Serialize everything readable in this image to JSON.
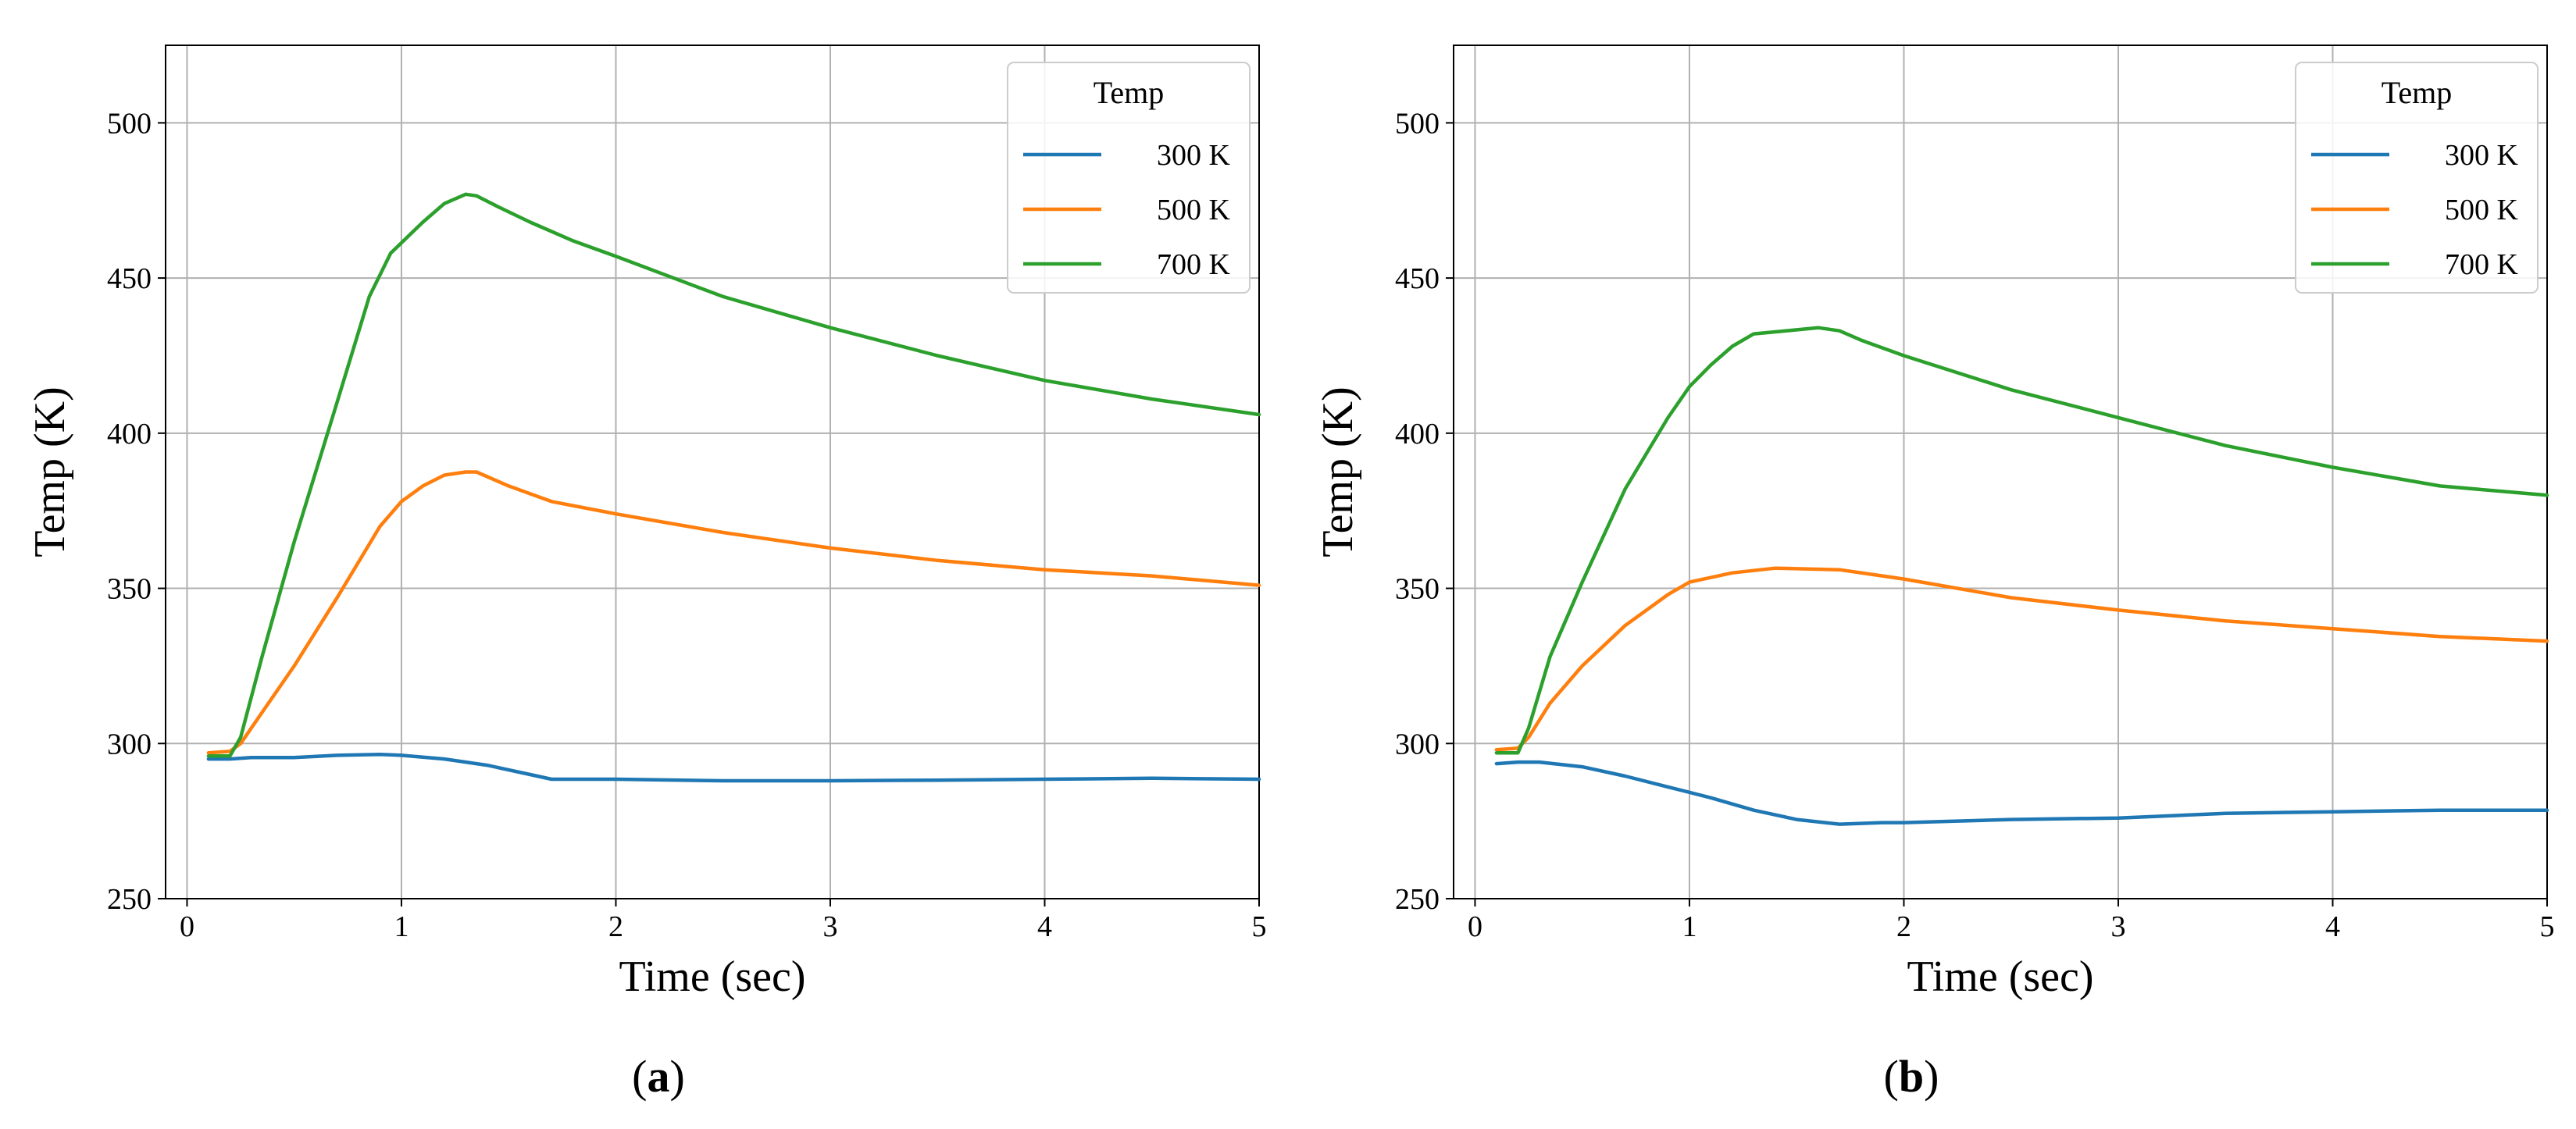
{
  "chart_data": [
    {
      "type": "line",
      "caption_open": "(",
      "caption_letter": "a",
      "caption_close": ")",
      "xlabel": "Time (sec)",
      "ylabel": "Temp (K)",
      "xlim": [
        -0.1,
        5
      ],
      "ylim": [
        250,
        525
      ],
      "xticks": [
        0,
        1,
        2,
        3,
        4,
        5
      ],
      "yticks": [
        250,
        300,
        350,
        400,
        450,
        500
      ],
      "legend_title": "Temp",
      "legend_position": "upper-right",
      "grid": true,
      "series": [
        {
          "name": "300 K",
          "color": "#1f77b4",
          "x": [
            0.1,
            0.2,
            0.3,
            0.5,
            0.7,
            0.9,
            1.0,
            1.2,
            1.4,
            1.6,
            1.7,
            2.0,
            2.5,
            3.0,
            3.5,
            4.0,
            4.5,
            5.0
          ],
          "y": [
            295,
            295,
            295.5,
            295.5,
            296.2,
            296.5,
            296.2,
            295,
            293,
            290,
            288.5,
            288.5,
            288,
            288,
            288.2,
            288.5,
            288.8,
            288.5
          ]
        },
        {
          "name": "500 K",
          "color": "#ff7f0e",
          "x": [
            0.1,
            0.2,
            0.25,
            0.35,
            0.5,
            0.7,
            0.9,
            1.0,
            1.1,
            1.2,
            1.3,
            1.35,
            1.4,
            1.5,
            1.7,
            2.0,
            2.5,
            3.0,
            3.5,
            4.0,
            4.5,
            5.0
          ],
          "y": [
            297,
            297.5,
            300,
            310,
            325,
            347,
            370,
            378,
            383,
            386.5,
            387.5,
            387.5,
            386,
            383,
            378,
            374,
            368,
            363,
            359,
            356,
            354,
            351
          ]
        },
        {
          "name": "700 K",
          "color": "#2ca02c",
          "x": [
            0.1,
            0.2,
            0.25,
            0.35,
            0.5,
            0.7,
            0.85,
            0.95,
            1.1,
            1.2,
            1.3,
            1.35,
            1.45,
            1.6,
            1.8,
            2.0,
            2.5,
            3.0,
            3.5,
            4.0,
            4.5,
            5.0
          ],
          "y": [
            296,
            296,
            302,
            328,
            365,
            410,
            444,
            458,
            468,
            474,
            477,
            476.5,
            473,
            468,
            462,
            457,
            444,
            434,
            425,
            417,
            411,
            406
          ]
        }
      ]
    },
    {
      "type": "line",
      "caption_open": "(",
      "caption_letter": "b",
      "caption_close": ")",
      "xlabel": "Time (sec)",
      "ylabel": "Temp (K)",
      "xlim": [
        -0.1,
        5
      ],
      "ylim": [
        250,
        525
      ],
      "xticks": [
        0,
        1,
        2,
        3,
        4,
        5
      ],
      "yticks": [
        250,
        300,
        350,
        400,
        450,
        500
      ],
      "legend_title": "Temp",
      "legend_position": "upper-right",
      "grid": true,
      "series": [
        {
          "name": "300 K",
          "color": "#1f77b4",
          "x": [
            0.1,
            0.2,
            0.3,
            0.5,
            0.7,
            0.9,
            1.1,
            1.3,
            1.5,
            1.7,
            1.9,
            2.0,
            2.5,
            3.0,
            3.5,
            4.0,
            4.5,
            5.0
          ],
          "y": [
            293.5,
            294,
            294,
            292.5,
            289.5,
            286,
            282.5,
            278.5,
            275.5,
            274,
            274.5,
            274.5,
            275.5,
            276,
            277.5,
            278,
            278.5,
            278.5
          ]
        },
        {
          "name": "500 K",
          "color": "#ff7f0e",
          "x": [
            0.1,
            0.2,
            0.25,
            0.35,
            0.5,
            0.7,
            0.9,
            1.0,
            1.2,
            1.4,
            1.7,
            2.0,
            2.5,
            3.0,
            3.5,
            4.0,
            4.5,
            5.0
          ],
          "y": [
            298,
            298.5,
            302,
            313,
            325,
            338,
            348,
            352,
            355,
            356.5,
            356,
            353,
            347,
            343,
            339.5,
            337,
            334.5,
            333
          ]
        },
        {
          "name": "700 K",
          "color": "#2ca02c",
          "x": [
            0.1,
            0.2,
            0.25,
            0.35,
            0.5,
            0.7,
            0.9,
            1.0,
            1.1,
            1.2,
            1.3,
            1.45,
            1.6,
            1.7,
            1.8,
            2.0,
            2.5,
            3.0,
            3.5,
            4.0,
            4.5,
            5.0
          ],
          "y": [
            297,
            297,
            305,
            328,
            352,
            382,
            405,
            415,
            422,
            428,
            432,
            433,
            434,
            433,
            430,
            425,
            414,
            405,
            396,
            389,
            383,
            380
          ]
        }
      ]
    }
  ]
}
